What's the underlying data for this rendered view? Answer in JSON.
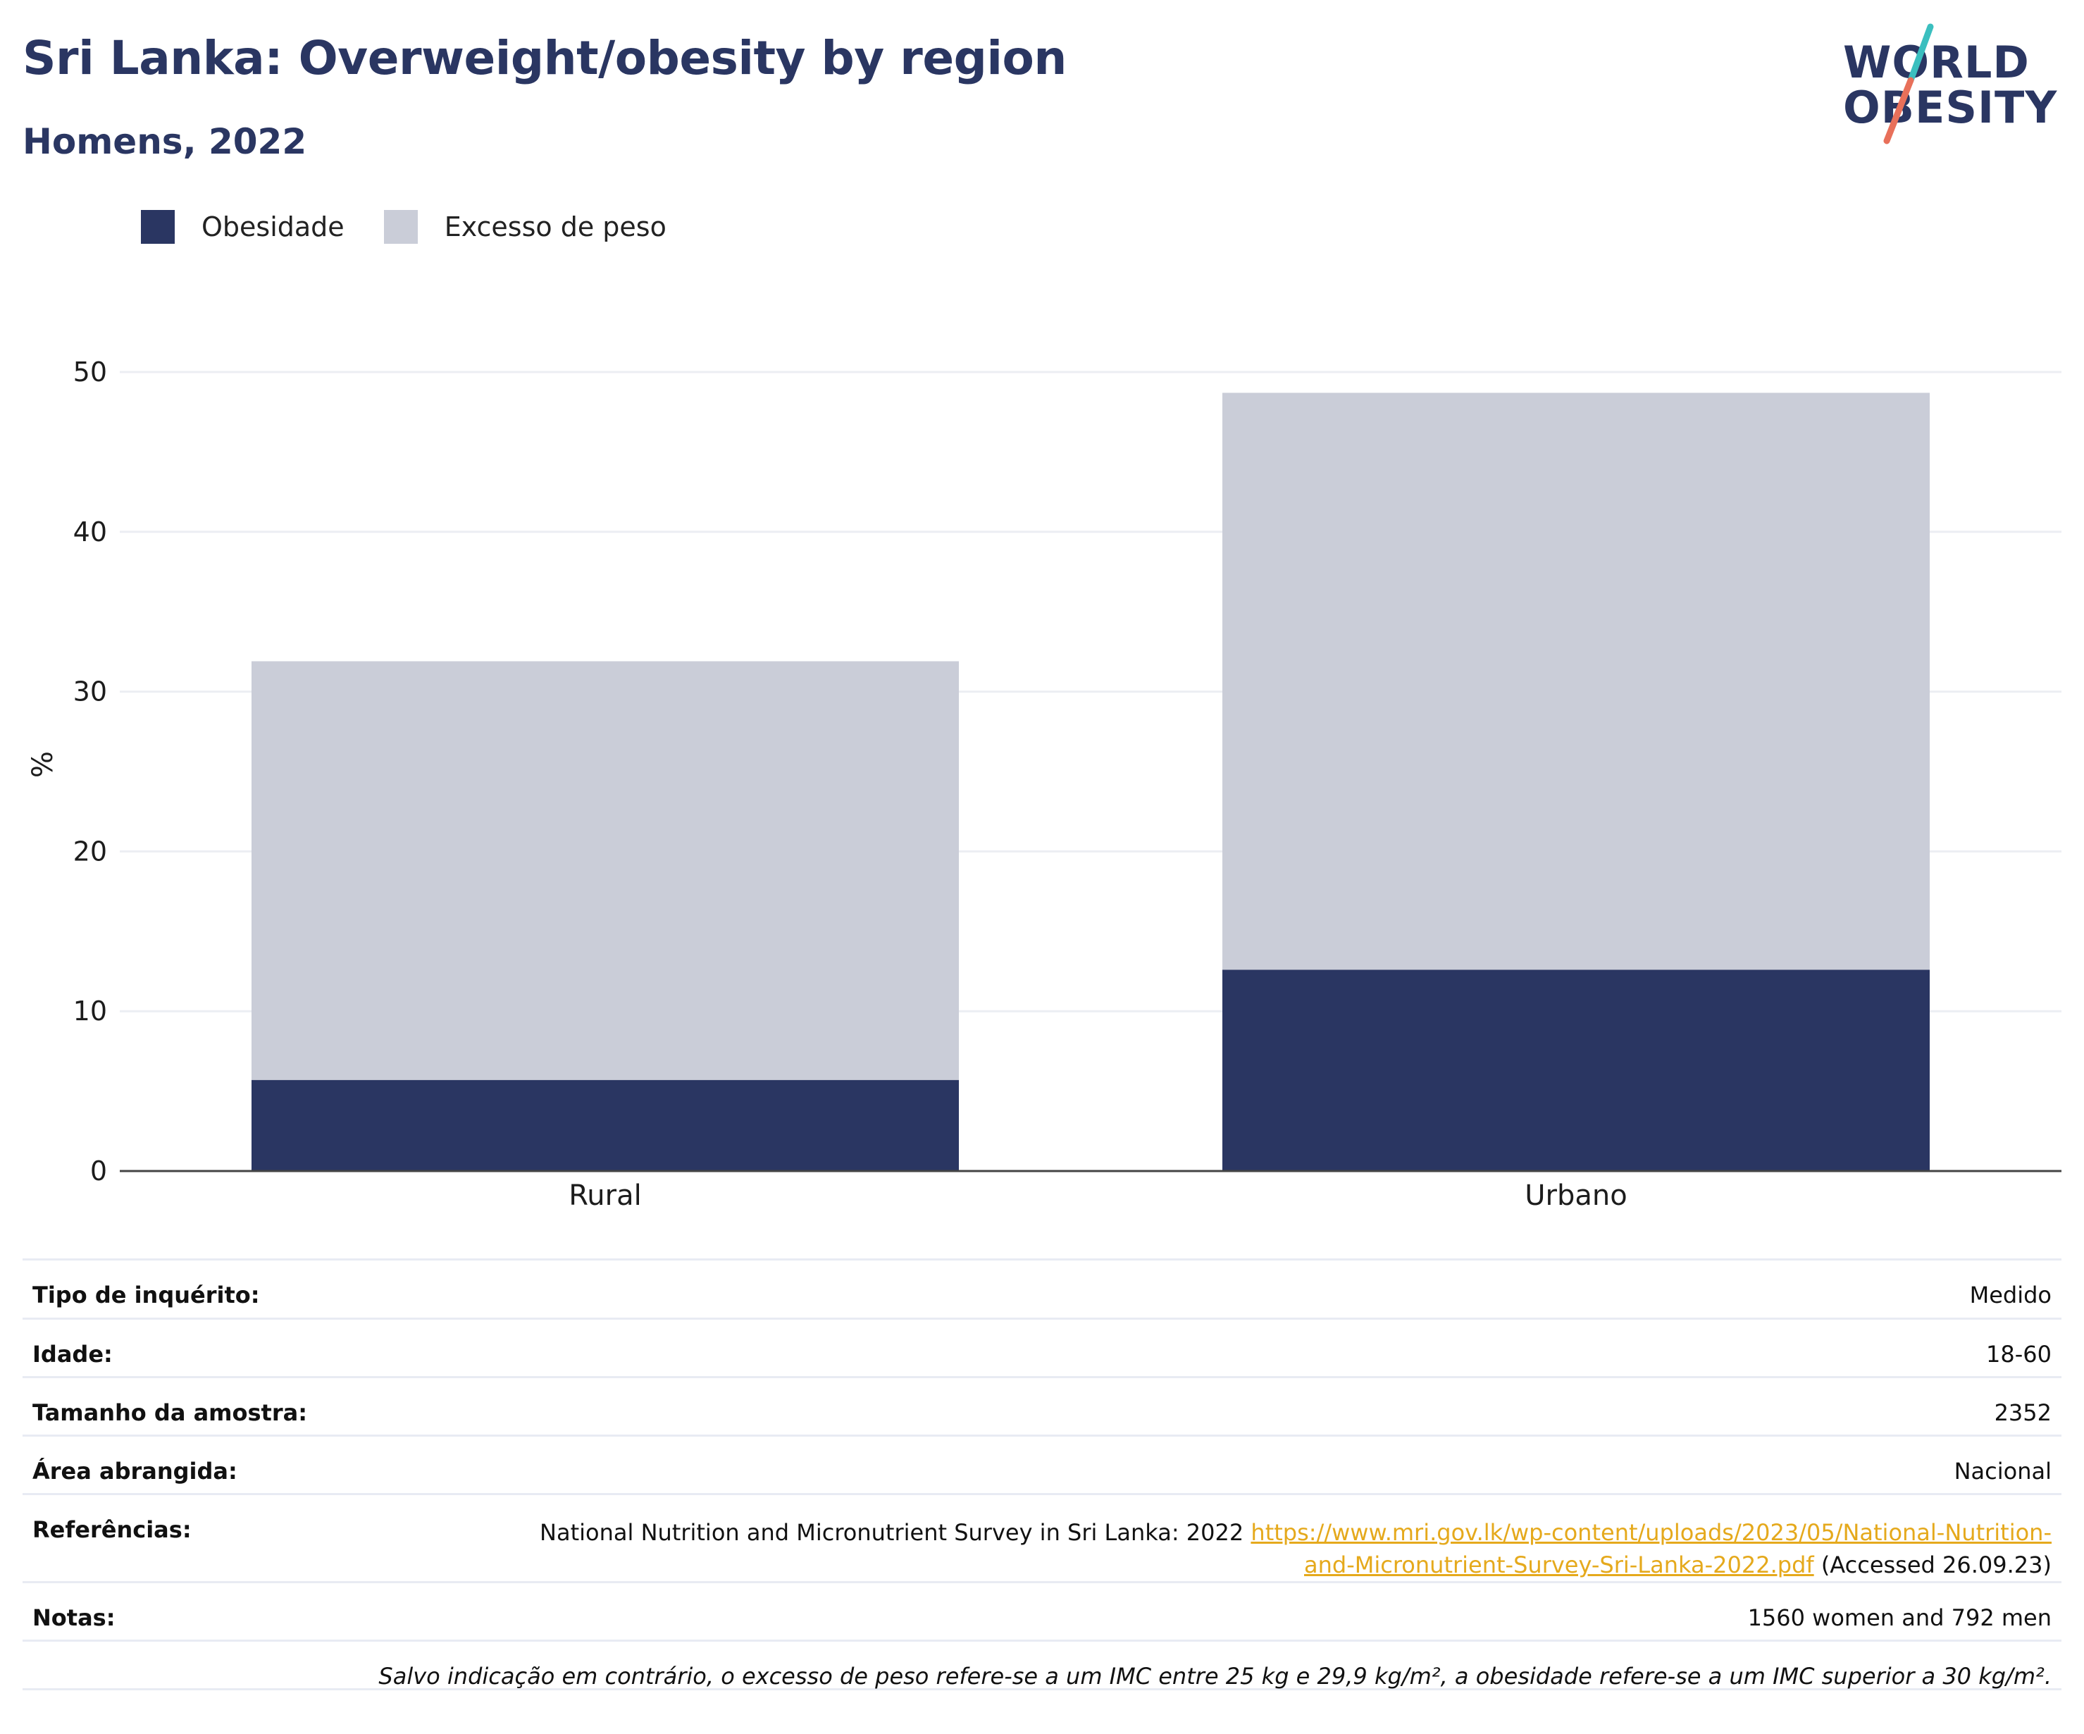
{
  "header": {
    "title": "Sri Lanka: Overweight/obesity by region",
    "subtitle": "Homens, 2022"
  },
  "logo": {
    "line1": "WORLD",
    "line2": "OBESITY",
    "colors": {
      "text": "#2a3662",
      "slash_top": "#3bbfbf",
      "slash_bottom": "#e8705a"
    }
  },
  "colors": {
    "obesity": "#2a3662",
    "overweight": "#cacdd8",
    "grid": "#eceef3",
    "axis": "#444444"
  },
  "chart_data": {
    "type": "bar",
    "stacked": true,
    "categories": [
      "Rural",
      "Urbano"
    ],
    "series": [
      {
        "name": "Obesidade",
        "values": [
          5.7,
          12.6
        ]
      },
      {
        "name": "Excesso de peso",
        "values": [
          26.2,
          36.1
        ]
      }
    ],
    "ylabel": "%",
    "xlabel": "",
    "ylim": [
      0,
      50
    ],
    "yticks": [
      "0",
      "10",
      "20",
      "30",
      "40",
      "50"
    ],
    "grid": true,
    "legend_position": "top-left"
  },
  "info": {
    "survey_type": {
      "label": "Tipo de inquérito:",
      "value": "Medido"
    },
    "age": {
      "label": "Idade:",
      "value": "18-60"
    },
    "sample_size": {
      "label": "Tamanho da amostra:",
      "value": "2352"
    },
    "area": {
      "label": "Área abrangida:",
      "value": "Nacional"
    },
    "references": {
      "label": "Referências:",
      "text": "National Nutrition and Micronutrient Survey in Sri Lanka: 2022",
      "link_line1": "https://www.mri.gov.lk/wp-content/uploads/2023/05/National-Nutrition-",
      "link_line2": "and-Micronutrient-Survey-Sri-Lanka-2022.pdf",
      "accessed": "(Accessed 26.09.23)"
    },
    "notes": {
      "label": "Notas:",
      "value": "1560 women and 792 men"
    },
    "footnote": "Salvo indicação em contrário, o excesso de peso refere-se a um IMC entre 25 kg e 29,9 kg/m², a obesidade refere-se a um IMC superior a 30 kg/m²."
  }
}
